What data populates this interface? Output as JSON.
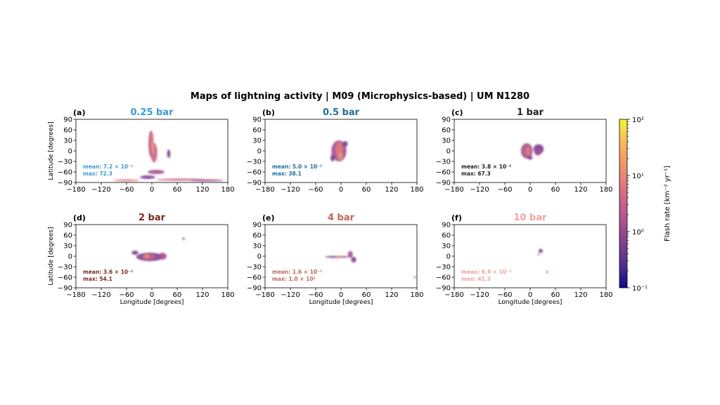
{
  "title": "Maps of lightning activity  |  M09 (Microphysics-based)  |  UM N1280",
  "colorbar": {
    "label": "Flash rate [km⁻² yr⁻¹]",
    "ticks": [
      "10⁻¹",
      "10⁰",
      "10¹",
      "10²"
    ],
    "scale": "log",
    "range": [
      0.1,
      100
    ],
    "colormap": [
      "#0d0887",
      "#4b2c8c",
      "#7b3f8f",
      "#a5508f",
      "#c9628a",
      "#e37a7a",
      "#f2966a",
      "#f8b65c",
      "#f7d550",
      "#f0f921"
    ]
  },
  "chart_data": [
    {
      "type": "heatmap",
      "panel": "(a)",
      "title": "0.25 bar",
      "title_color": "#3b9bd3",
      "mean": "mean: 7.2 × 10⁻¹",
      "max": "max: 72.3",
      "xlim": [
        -180,
        180
      ],
      "ylim": [
        -90,
        90
      ],
      "xlabel": "",
      "ylabel": "Latitude [degrees]",
      "xticks": [
        "−180",
        "−120",
        "−60",
        "0",
        "60",
        "120",
        "180"
      ],
      "yticks": [
        "90",
        "60",
        "30",
        "0",
        "−30",
        "−60",
        "−90"
      ]
    },
    {
      "type": "heatmap",
      "panel": "(b)",
      "title": "0.5 bar",
      "title_color": "#1f6e9c",
      "mean": "mean: 5.0 × 10⁻¹",
      "max": "max: 38.1",
      "xlim": [
        -180,
        180
      ],
      "ylim": [
        -90,
        90
      ],
      "xlabel": "",
      "ylabel": "",
      "xticks": [
        "−180",
        "−120",
        "−60",
        "0",
        "60",
        "120",
        "180"
      ],
      "yticks": [
        "90",
        "60",
        "30",
        "0",
        "−30",
        "−60",
        "−90"
      ]
    },
    {
      "type": "heatmap",
      "panel": "(c)",
      "title": "1 bar",
      "title_color": "#222222",
      "mean": "mean: 3.8 × 10⁻¹",
      "max": "max: 67.3",
      "xlim": [
        -180,
        180
      ],
      "ylim": [
        -90,
        90
      ],
      "xlabel": "",
      "ylabel": "",
      "xticks": [
        "−180",
        "−120",
        "−60",
        "0",
        "60",
        "120",
        "180"
      ],
      "yticks": [
        "90",
        "60",
        "30",
        "0",
        "−30",
        "−60",
        "−90"
      ]
    },
    {
      "type": "heatmap",
      "panel": "(d)",
      "title": "2 bar",
      "title_color": "#7a2a22",
      "mean": "mean: 3.6 × 10⁻¹",
      "max": "max: 54.1",
      "xlim": [
        -180,
        180
      ],
      "ylim": [
        -90,
        90
      ],
      "xlabel": "Longitude [degrees]",
      "ylabel": "Latitude [degrees]",
      "xticks": [
        "−180",
        "−120",
        "−60",
        "0",
        "60",
        "120",
        "180"
      ],
      "yticks": [
        "90",
        "60",
        "30",
        "0",
        "−30",
        "−60",
        "−90"
      ]
    },
    {
      "type": "heatmap",
      "panel": "(e)",
      "title": "4 bar",
      "title_color": "#c0665a",
      "mean": "mean: 1.6 × 10⁻¹",
      "max": "max: 1.0 × 10²",
      "xlim": [
        -180,
        180
      ],
      "ylim": [
        -90,
        90
      ],
      "xlabel": "Longitude [degrees]",
      "ylabel": "",
      "xticks": [
        "−180",
        "−120",
        "−60",
        "0",
        "60",
        "120",
        "180"
      ],
      "yticks": [
        "90",
        "60",
        "30",
        "0",
        "−30",
        "−60",
        "−90"
      ]
    },
    {
      "type": "heatmap",
      "panel": "(f)",
      "title": "10 bar",
      "title_color": "#f0a2a2",
      "mean": "mean: 6.9 × 10⁻³",
      "max": "max: 41.3",
      "xlim": [
        -180,
        180
      ],
      "ylim": [
        -90,
        90
      ],
      "xlabel": "Longitude [degrees]",
      "ylabel": "",
      "xticks": [
        "−180",
        "−120",
        "−60",
        "0",
        "60",
        "120",
        "180"
      ],
      "yticks": [
        "90",
        "60",
        "30",
        "0",
        "−30",
        "−60",
        "−90"
      ]
    }
  ]
}
